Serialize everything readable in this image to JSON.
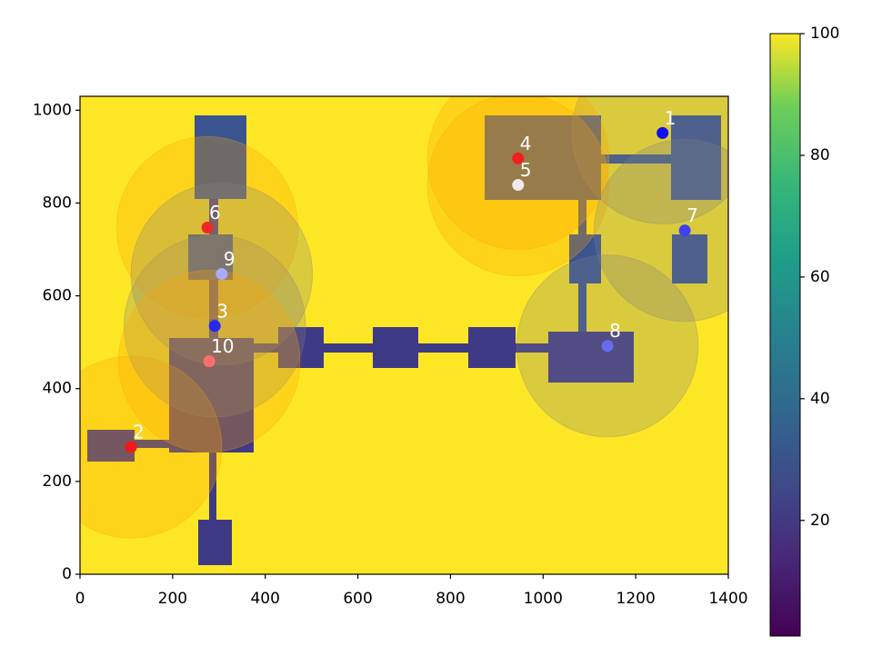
{
  "chart_data": {
    "type": "scatter",
    "x": [
      1258,
      110,
      291,
      946,
      946,
      275,
      1306,
      1139,
      306,
      279
    ],
    "values": [
      951,
      274,
      535,
      896,
      839,
      747,
      741,
      492,
      647,
      459
    ],
    "point_labels": [
      "1",
      "2",
      "3",
      "4",
      "5",
      "6",
      "7",
      "8",
      "9",
      "10"
    ],
    "colors": [
      "#1010f0",
      "#f01818",
      "#2828f0",
      "#f02020",
      "#f4e8ee",
      "#f02828",
      "#4040ee",
      "#6a6aee",
      "#aaaaff",
      "#ff6e6e"
    ],
    "circle_radius": 196,
    "circle_colors": [
      "gray",
      "orange",
      "gray",
      "orange",
      "orange",
      "orange",
      "gray",
      "gray",
      "gray",
      "orange"
    ],
    "xlim": [
      0,
      1400
    ],
    "ylim": [
      0,
      1030
    ],
    "xticks": [
      0,
      200,
      400,
      600,
      800,
      1000,
      1200,
      1400
    ],
    "yticks": [
      0,
      200,
      400,
      600,
      800,
      1000
    ],
    "colorbar": {
      "lim": [
        1,
        100
      ],
      "ticks": [
        20,
        40,
        60,
        80,
        100
      ],
      "colormap": "viridis"
    }
  }
}
